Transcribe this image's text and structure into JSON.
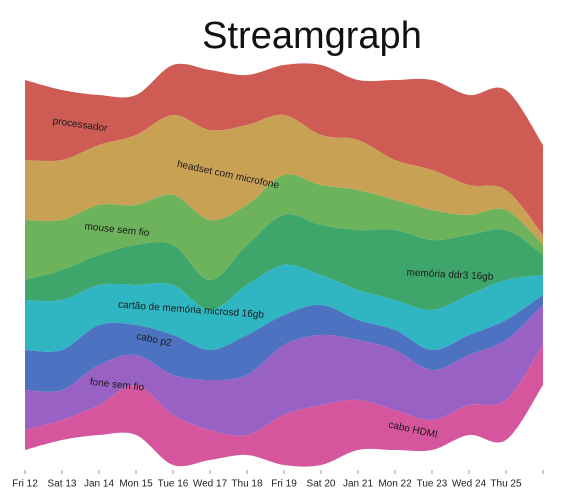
{
  "chart_data": {
    "type": "streamgraph",
    "title": "Streamgraph",
    "categories": [
      "Fri 12",
      "Sat 13",
      "Jan 14",
      "Mon 15",
      "Tue 16",
      "Wed 17",
      "Thu 18",
      "Fri 19",
      "Sat 20",
      "Jan 21",
      "Mon 22",
      "Tue 23",
      "Wed 24",
      "Thu 25",
      null
    ],
    "series": [
      {
        "name": "processador",
        "color": "#cf5b55",
        "values": [
          8,
          7,
          5,
          4,
          5,
          6,
          5,
          5,
          7,
          6,
          8,
          9,
          9,
          10,
          9
        ]
      },
      {
        "name": "headset com microfone",
        "color": "#c9a155",
        "values": [
          6,
          6,
          6,
          7,
          8,
          9,
          8,
          6,
          5,
          5,
          4,
          4,
          3,
          2,
          1
        ]
      },
      {
        "name": "mouse sem fio",
        "color": "#6db35c",
        "values": [
          6,
          5,
          5,
          4,
          5,
          6,
          4,
          4,
          4,
          4,
          3,
          3,
          2,
          2,
          1
        ]
      },
      {
        "name": "memória ddr3 16gb",
        "color": "#3fa66b",
        "values": [
          2,
          3,
          3,
          4,
          4,
          3,
          4,
          5,
          5,
          6,
          7,
          7,
          6,
          5,
          2
        ]
      },
      {
        "name": "cartão de memória microsd 16gb",
        "color": "#2fb6c2",
        "values": [
          5,
          5,
          4,
          4,
          5,
          4,
          5,
          5,
          3,
          3,
          3,
          4,
          4,
          4,
          2
        ]
      },
      {
        "name": "cabo p2",
        "color": "#4d72c2",
        "values": [
          4,
          4,
          4,
          3,
          4,
          3,
          4,
          3,
          3,
          2,
          2,
          2,
          2,
          2,
          1
        ]
      },
      {
        "name": "fone sem fio",
        "color": "#9a61c4",
        "values": [
          4,
          3,
          4,
          3,
          4,
          5,
          6,
          7,
          7,
          6,
          6,
          5,
          5,
          6,
          4
        ]
      },
      {
        "name": "cabo HDMI",
        "color": "#d5569c",
        "values": [
          2,
          2,
          3,
          5,
          5,
          3,
          2,
          5,
          6,
          5,
          4,
          3,
          3,
          4,
          4
        ]
      }
    ]
  }
}
